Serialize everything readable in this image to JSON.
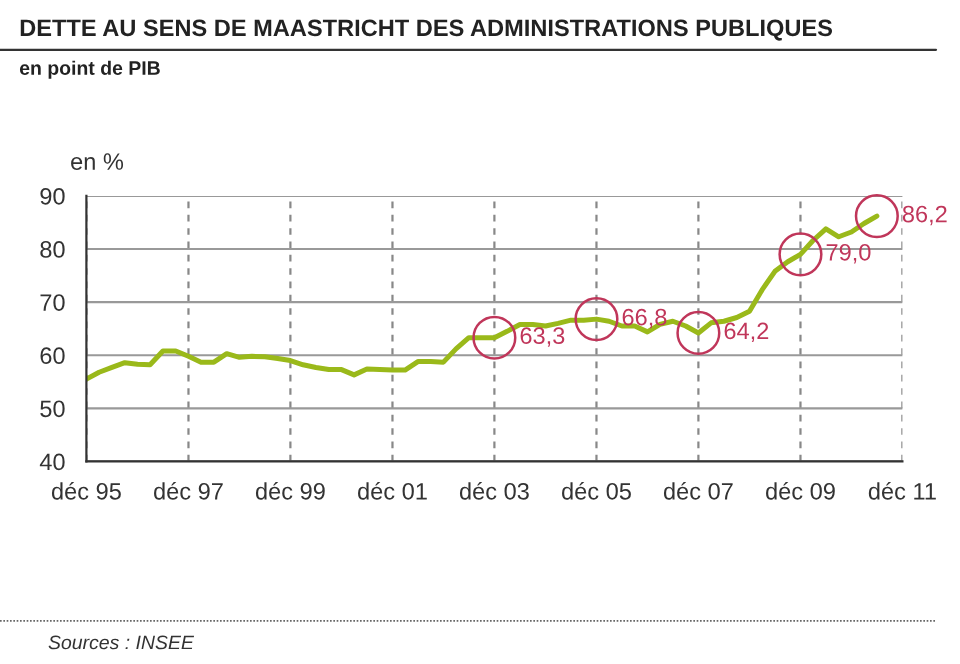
{
  "chart_data": {
    "type": "line",
    "title": "DETTE AU SENS DE MAASTRICHT DES ADMINISTRATIONS PUBLIQUES",
    "subtitle": "en point de PIB",
    "ylabel": "en %",
    "x": [
      "1995-12",
      "1996-03",
      "1996-06",
      "1996-09",
      "1996-12",
      "1997-03",
      "1997-06",
      "1997-09",
      "1997-12",
      "1998-03",
      "1998-06",
      "1998-09",
      "1998-12",
      "1999-03",
      "1999-06",
      "1999-09",
      "1999-12",
      "2000-03",
      "2000-06",
      "2000-09",
      "2000-12",
      "2001-03",
      "2001-06",
      "2001-09",
      "2001-12",
      "2002-03",
      "2002-06",
      "2002-09",
      "2002-12",
      "2003-03",
      "2003-06",
      "2003-09",
      "2003-12",
      "2004-03",
      "2004-06",
      "2004-09",
      "2004-12",
      "2005-03",
      "2005-06",
      "2005-09",
      "2005-12",
      "2006-03",
      "2006-06",
      "2006-09",
      "2006-12",
      "2007-03",
      "2007-06",
      "2007-09",
      "2007-12",
      "2008-03",
      "2008-06",
      "2008-09",
      "2008-12",
      "2009-03",
      "2009-06",
      "2009-09",
      "2009-12",
      "2010-03",
      "2010-06",
      "2010-09",
      "2010-12",
      "2011-03",
      "2011-06"
    ],
    "series": [
      {
        "color": "#9ab91a",
        "values": [
          55.5,
          56.8,
          57.7,
          58.6,
          58.3,
          58.2,
          60.8,
          60.8,
          59.8,
          58.7,
          58.7,
          60.3,
          59.6,
          59.8,
          59.7,
          59.4,
          59.0,
          58.2,
          57.7,
          57.3,
          57.3,
          56.3,
          57.4,
          57.3,
          57.2,
          57.2,
          58.8,
          58.8,
          58.7,
          61.2,
          63.3,
          63.3,
          63.3,
          64.5,
          65.8,
          65.8,
          65.5,
          66.0,
          66.6,
          66.6,
          66.8,
          66.4,
          65.5,
          65.5,
          64.4,
          65.8,
          66.4,
          65.5,
          64.2,
          66.1,
          66.4,
          67.1,
          68.3,
          72.3,
          75.8,
          77.6,
          79.0,
          81.6,
          83.8,
          82.3,
          83.2,
          84.8,
          86.2
        ]
      }
    ],
    "xlim": [
      "1995-12",
      "2011-12"
    ],
    "xticks": [
      {
        "value": "1995-12",
        "label": "déc 95"
      },
      {
        "value": "1997-12",
        "label": "déc 97"
      },
      {
        "value": "1999-12",
        "label": "déc 99"
      },
      {
        "value": "2001-12",
        "label": "déc 01"
      },
      {
        "value": "2003-12",
        "label": "déc 03"
      },
      {
        "value": "2005-12",
        "label": "déc 05"
      },
      {
        "value": "2007-12",
        "label": "déc 07"
      },
      {
        "value": "2009-12",
        "label": "déc 09"
      },
      {
        "value": "2011-12",
        "label": "déc 11"
      }
    ],
    "ylim": [
      40,
      90
    ],
    "yticks": [
      40,
      50,
      60,
      70,
      80,
      90
    ],
    "grid": true,
    "legend": false,
    "marker": "none",
    "line_style": "solid",
    "annotations": [
      {
        "text": "63,3",
        "x": "2003-12",
        "y": 63.3
      },
      {
        "text": "66,8",
        "x": "2005-12",
        "y": 66.8
      },
      {
        "text": "64,2",
        "x": "2007-12",
        "y": 64.2
      },
      {
        "text": "79,0",
        "x": "2009-12",
        "y": 79.0
      },
      {
        "text": "86,2",
        "x": "2011-06",
        "y": 86.2
      },
      "Sources : INSEE"
    ]
  }
}
